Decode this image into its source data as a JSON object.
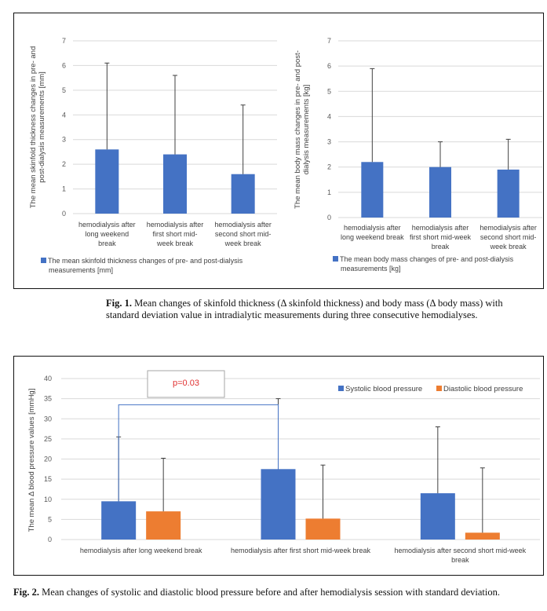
{
  "figure1": {
    "caption_label": "Fig. 1.",
    "caption_text": "Mean changes of skinfold thickness (Δ skinfold thickness) and body mass (Δ body mass) with standard deviation value in intradialytic measurements during three consecutive hemodialyses."
  },
  "figure2": {
    "caption_label": "Fig. 2.",
    "caption_text": "Mean changes of systolic and diastolic blood pressure before and after hemodialysis session with standard deviation.",
    "annotation": "p=0.03"
  },
  "colors": {
    "blue": "#4472C4",
    "orange": "#ED7D31",
    "grid": "#D9D9D9",
    "bracket": "#4472C4",
    "annotation": "#E03030"
  },
  "chart_data": [
    {
      "type": "bar",
      "categories": [
        [
          "hemodialysis after",
          "long weekend",
          "break"
        ],
        [
          "hemodialysis after",
          "first short mid-",
          "week break"
        ],
        [
          "hemodialysis after",
          "second short mid-",
          "week break"
        ]
      ],
      "series": [
        {
          "name": "The mean skinfold thickness changes of pre- and post-dialysis measurements [mm]",
          "legend_lines": [
            "The mean skinfold thickness changes of pre- and post-dialysis",
            "measurements [mm]"
          ],
          "values": [
            2.6,
            2.4,
            1.6
          ],
          "error": [
            3.5,
            3.2,
            2.8
          ],
          "color": "#4472C4"
        }
      ],
      "ylabel_lines": [
        "The mean skinfold thickness changes in pre- and",
        "post-dialysis measurements [mm]"
      ],
      "ylim": [
        0,
        7
      ],
      "yticks": [
        "0",
        "1",
        "2",
        "3",
        "4",
        "5",
        "6",
        "7"
      ],
      "grid": true,
      "legend": "bottom"
    },
    {
      "type": "bar",
      "categories": [
        [
          "hemodialysis after",
          "long weekend break"
        ],
        [
          "hemodialysis after",
          "first short mid-week",
          "break"
        ],
        [
          "hemodialysis after",
          "second short mid-",
          "week break"
        ]
      ],
      "series": [
        {
          "name": "The mean body mass changes of pre- and post-dialysis measurements [kg]",
          "legend_lines": [
            "The mean body mass changes of pre- and post-dialysis",
            "measurements [kg]"
          ],
          "values": [
            2.2,
            2.0,
            1.9
          ],
          "error": [
            3.7,
            1.0,
            1.2
          ],
          "color": "#4472C4"
        }
      ],
      "ylabel_lines": [
        "The mean body mass changes in pre- and post-",
        "dialysis measurements [kg]"
      ],
      "ylim": [
        0,
        7
      ],
      "yticks": [
        "0",
        "1",
        "2",
        "3",
        "4",
        "5",
        "6",
        "7"
      ],
      "grid": true,
      "legend": "bottom"
    },
    {
      "type": "bar",
      "categories": [
        [
          "hemodialysis after long weekend break"
        ],
        [
          "hemodialysis after first short mid-week break"
        ],
        [
          "hemodialysis after second short mid-week",
          "break"
        ]
      ],
      "series": [
        {
          "name": "Systolic blood pressure",
          "values": [
            9.5,
            17.5,
            11.5
          ],
          "error": [
            16.0,
            17.5,
            16.5
          ],
          "color": "#4472C4"
        },
        {
          "name": "Diastolic blood pressure",
          "values": [
            7.0,
            5.2,
            1.7
          ],
          "error": [
            13.2,
            13.3,
            16.1
          ],
          "color": "#ED7D31"
        }
      ],
      "ylabel_lines": [
        "The mean Δ blood pressure values [mmHg]"
      ],
      "ylim": [
        0,
        40
      ],
      "yticks": [
        "0",
        "5",
        "10",
        "15",
        "20",
        "25",
        "30",
        "35",
        "40"
      ],
      "grid": true,
      "legend": "top-right"
    }
  ]
}
